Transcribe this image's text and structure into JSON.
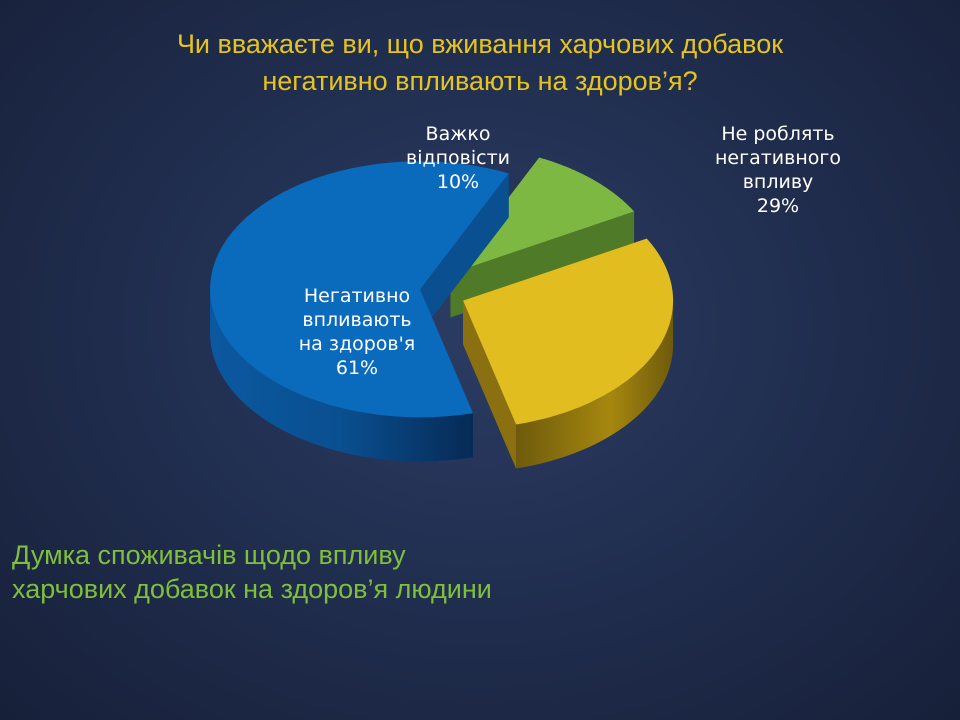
{
  "title": {
    "line1": "Чи вважаєте ви, що вживання харчових добавок",
    "line2": "негативно впливають на здоров’я?"
  },
  "caption": {
    "line1": "Думка споживачів щодо впливу",
    "line2": "харчових добавок на здоров’я людини"
  },
  "chart_data": {
    "type": "pie",
    "title": "Чи вважаєте ви, що вживання харчових добавок негативно впливають на здоров’я?",
    "slices": [
      {
        "label_lines": [
          "Важко",
          "відповісти",
          "10%"
        ],
        "value": 10,
        "color": "#7cb842",
        "side_color": "#4f7a27"
      },
      {
        "label_lines": [
          "Не роблять",
          "негативного",
          "впливу",
          "29%"
        ],
        "value": 29,
        "color": "#e2bd1f",
        "side_color": "#8a7010"
      },
      {
        "label_lines": [
          "Негативно",
          "впливають",
          "на здоров'я",
          "61%"
        ],
        "value": 61,
        "color": "#0a6bbd",
        "side_color": "#0a4f8f"
      }
    ]
  }
}
